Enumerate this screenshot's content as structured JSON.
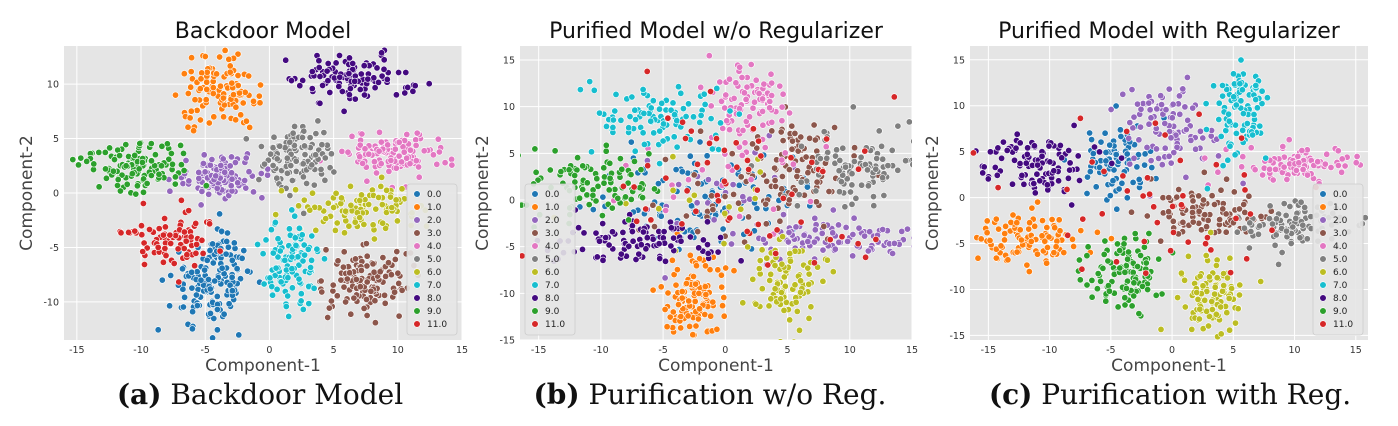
{
  "chart_data": [
    {
      "type": "scatter",
      "title": "Backdoor Model",
      "xlabel": "Component-1",
      "ylabel": "Component-2",
      "xlim": [
        -16,
        15
      ],
      "ylim": [
        -13.5,
        13.5
      ],
      "xticks": [
        -15,
        -10,
        -5,
        0,
        5,
        10,
        15
      ],
      "yticks": [
        -10,
        -5,
        0,
        5,
        10
      ],
      "grid": true,
      "legend_position": "lower-right",
      "series": [
        {
          "name": "0.0",
          "color": "#1f77b4",
          "clusters": [
            {
              "cx": -4.5,
              "cy": -8.5,
              "sx": 1.6,
              "sy": 2.0,
              "n": 130
            },
            {
              "cx": -3.5,
              "cy": -5.2,
              "sx": 0.7,
              "sy": 1.2,
              "n": 30
            }
          ]
        },
        {
          "name": "1.0",
          "color": "#ff7f0e",
          "clusters": [
            {
              "cx": -4.0,
              "cy": 9.0,
              "sx": 1.5,
              "sy": 1.6,
              "n": 120
            }
          ]
        },
        {
          "name": "2.0",
          "color": "#9467bd",
          "clusters": [
            {
              "cx": -3.8,
              "cy": 1.5,
              "sx": 1.7,
              "sy": 1.0,
              "n": 110
            }
          ]
        },
        {
          "name": "3.0",
          "color": "#8c564b",
          "clusters": [
            {
              "cx": 7.5,
              "cy": -8.0,
              "sx": 1.6,
              "sy": 1.5,
              "n": 130
            }
          ]
        },
        {
          "name": "4.0",
          "color": "#e377c2",
          "clusters": [
            {
              "cx": 9.5,
              "cy": 3.5,
              "sx": 2.2,
              "sy": 1.0,
              "n": 120
            }
          ]
        },
        {
          "name": "5.0",
          "color": "#7f7f7f",
          "clusters": [
            {
              "cx": 2.3,
              "cy": 3.5,
              "sx": 1.4,
              "sy": 1.6,
              "n": 120
            }
          ]
        },
        {
          "name": "6.0",
          "color": "#bcbd22",
          "clusters": [
            {
              "cx": 7.5,
              "cy": -1.5,
              "sx": 2.2,
              "sy": 1.1,
              "n": 110
            }
          ]
        },
        {
          "name": "7.0",
          "color": "#17becf",
          "clusters": [
            {
              "cx": 1.8,
              "cy": -6.5,
              "sx": 1.0,
              "sy": 2.0,
              "n": 110
            }
          ]
        },
        {
          "name": "8.0",
          "color": "#440a80",
          "clusters": [
            {
              "cx": 6.5,
              "cy": 10.5,
              "sx": 2.3,
              "sy": 1.0,
              "n": 120
            }
          ]
        },
        {
          "name": "9.0",
          "color": "#2ca02c",
          "clusters": [
            {
              "cx": -10.5,
              "cy": 2.5,
              "sx": 2.3,
              "sy": 1.2,
              "n": 120
            }
          ]
        },
        {
          "name": "11.0",
          "color": "#d62728",
          "clusters": [
            {
              "cx": -7.5,
              "cy": -4.0,
              "sx": 1.6,
              "sy": 1.3,
              "n": 80
            },
            {
              "cx": -11.0,
              "cy": -3.6,
              "sx": 0.6,
              "sy": 0.1,
              "n": 8
            }
          ]
        }
      ]
    },
    {
      "type": "scatter",
      "title": "Purified Model w/o Regularizer",
      "xlabel": "Component-1",
      "ylabel": "Component-2",
      "xlim": [
        -16.5,
        15
      ],
      "ylim": [
        -15,
        16.5
      ],
      "xticks": [
        -15,
        -10,
        -5,
        0,
        5,
        10,
        15
      ],
      "yticks": [
        -15,
        -10,
        -5,
        0,
        5,
        10,
        15
      ],
      "grid": true,
      "legend_position": "lower-left",
      "series": [
        {
          "name": "0.0",
          "color": "#1f77b4",
          "clusters": [
            {
              "cx": -1.5,
              "cy": 0.5,
              "sx": 3.5,
              "sy": 2.5,
              "n": 110
            }
          ]
        },
        {
          "name": "1.0",
          "color": "#ff7f0e",
          "clusters": [
            {
              "cx": -2.5,
              "cy": -10.5,
              "sx": 1.3,
              "sy": 2.2,
              "n": 110
            }
          ]
        },
        {
          "name": "2.0",
          "color": "#9467bd",
          "clusters": [
            {
              "cx": 8.5,
              "cy": -4.0,
              "sx": 3.5,
              "sy": 1.2,
              "n": 90
            },
            {
              "cx": 0.0,
              "cy": 0.0,
              "sx": 4.0,
              "sy": 3.0,
              "n": 30
            }
          ]
        },
        {
          "name": "3.0",
          "color": "#8c564b",
          "clusters": [
            {
              "cx": 6.0,
              "cy": 3.5,
              "sx": 2.0,
              "sy": 2.5,
              "n": 90
            },
            {
              "cx": 0.0,
              "cy": 0.0,
              "sx": 4.0,
              "sy": 3.0,
              "n": 25
            }
          ]
        },
        {
          "name": "4.0",
          "color": "#e377c2",
          "clusters": [
            {
              "cx": 2.0,
              "cy": 10.5,
              "sx": 1.6,
              "sy": 2.4,
              "n": 90
            },
            {
              "cx": 0.0,
              "cy": 2.0,
              "sx": 4.0,
              "sy": 3.0,
              "n": 25
            }
          ]
        },
        {
          "name": "5.0",
          "color": "#7f7f7f",
          "clusters": [
            {
              "cx": 10.5,
              "cy": 3.5,
              "sx": 2.5,
              "sy": 2.0,
              "n": 100
            }
          ]
        },
        {
          "name": "6.0",
          "color": "#bcbd22",
          "clusters": [
            {
              "cx": 5.0,
              "cy": -9.0,
              "sx": 1.6,
              "sy": 2.2,
              "n": 90
            },
            {
              "cx": 0.0,
              "cy": 0.0,
              "sx": 4.0,
              "sy": 3.0,
              "n": 20
            }
          ]
        },
        {
          "name": "7.0",
          "color": "#17becf",
          "clusters": [
            {
              "cx": -5.5,
              "cy": 8.5,
              "sx": 2.5,
              "sy": 1.8,
              "n": 100
            }
          ]
        },
        {
          "name": "8.0",
          "color": "#440a80",
          "clusters": [
            {
              "cx": -7.5,
              "cy": -4.5,
              "sx": 3.5,
              "sy": 1.2,
              "n": 100
            }
          ]
        },
        {
          "name": "9.0",
          "color": "#2ca02c",
          "clusters": [
            {
              "cx": -10.5,
              "cy": 1.5,
              "sx": 2.5,
              "sy": 2.0,
              "n": 100
            }
          ]
        },
        {
          "name": "11.0",
          "color": "#d62728",
          "clusters": [
            {
              "cx": 0.0,
              "cy": 2.0,
              "sx": 6.0,
              "sy": 5.5,
              "n": 60
            }
          ]
        }
      ]
    },
    {
      "type": "scatter",
      "title": "Purified Model with Regularizer",
      "xlabel": "Component-1",
      "ylabel": "Component-2",
      "xlim": [
        -16.5,
        16
      ],
      "ylim": [
        -15.5,
        16.5
      ],
      "xticks": [
        -15,
        -10,
        -5,
        0,
        5,
        10,
        15
      ],
      "yticks": [
        -15,
        -10,
        -5,
        0,
        5,
        10,
        15
      ],
      "grid": true,
      "legend_position": "lower-right",
      "series": [
        {
          "name": "0.0",
          "color": "#1f77b4",
          "clusters": [
            {
              "cx": -4.5,
              "cy": 4.0,
              "sx": 1.6,
              "sy": 2.0,
              "n": 90
            }
          ]
        },
        {
          "name": "1.0",
          "color": "#ff7f0e",
          "clusters": [
            {
              "cx": -12.0,
              "cy": -4.5,
              "sx": 2.5,
              "sy": 1.5,
              "n": 110
            }
          ]
        },
        {
          "name": "2.0",
          "color": "#9467bd",
          "clusters": [
            {
              "cx": 0.0,
              "cy": 7.5,
              "sx": 1.8,
              "sy": 2.5,
              "n": 100
            }
          ]
        },
        {
          "name": "3.0",
          "color": "#8c564b",
          "clusters": [
            {
              "cx": 3.0,
              "cy": -2.0,
              "sx": 2.4,
              "sy": 1.5,
              "n": 100
            }
          ]
        },
        {
          "name": "4.0",
          "color": "#e377c2",
          "clusters": [
            {
              "cx": 10.0,
              "cy": 3.5,
              "sx": 2.5,
              "sy": 1.0,
              "n": 100
            }
          ]
        },
        {
          "name": "5.0",
          "color": "#7f7f7f",
          "clusters": [
            {
              "cx": 10.0,
              "cy": -3.0,
              "sx": 2.3,
              "sy": 1.3,
              "n": 100
            }
          ]
        },
        {
          "name": "6.0",
          "color": "#bcbd22",
          "clusters": [
            {
              "cx": 3.5,
              "cy": -10.5,
              "sx": 1.3,
              "sy": 2.0,
              "n": 100
            }
          ]
        },
        {
          "name": "7.0",
          "color": "#17becf",
          "clusters": [
            {
              "cx": 5.5,
              "cy": 9.0,
              "sx": 1.2,
              "sy": 2.8,
              "n": 100
            }
          ]
        },
        {
          "name": "8.0",
          "color": "#440a80",
          "clusters": [
            {
              "cx": -11.0,
              "cy": 3.5,
              "sx": 2.3,
              "sy": 1.8,
              "n": 110
            }
          ]
        },
        {
          "name": "9.0",
          "color": "#2ca02c",
          "clusters": [
            {
              "cx": -4.0,
              "cy": -8.0,
              "sx": 1.6,
              "sy": 2.0,
              "n": 110
            }
          ]
        },
        {
          "name": "11.0",
          "color": "#d62728",
          "clusters": [
            {
              "cx": 0.0,
              "cy": 0.0,
              "sx": 6.0,
              "sy": 5.5,
              "n": 45
            }
          ]
        }
      ]
    }
  ],
  "captions": [
    {
      "letter": "(a)",
      "text": "Backdoor Model"
    },
    {
      "letter": "(b)",
      "text": "Purification w/o Reg."
    },
    {
      "letter": "(c)",
      "text": "Purification with Reg."
    }
  ]
}
